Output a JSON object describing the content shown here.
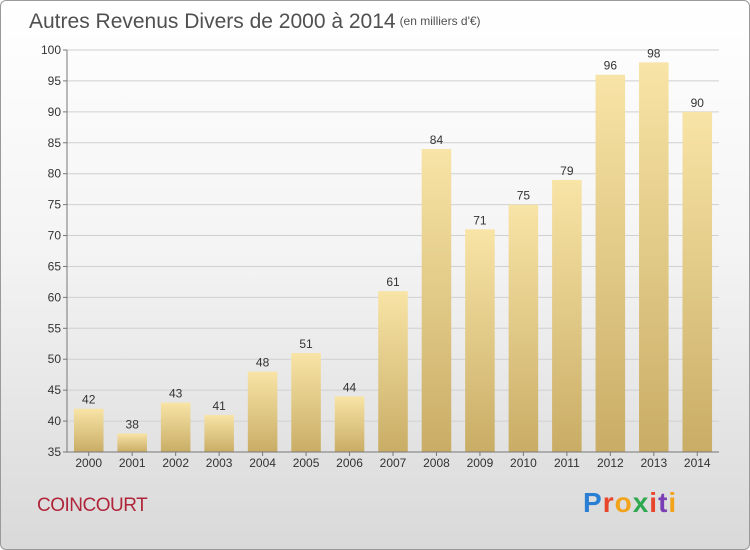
{
  "title": "Autres Revenus Divers de 2000 à 2014",
  "unit": "(en milliers d'€)",
  "commune": "COINCOURT",
  "logo": {
    "text": "Proxiti",
    "colors": [
      "#2a7fd4",
      "#e8452c",
      "#f2a31b",
      "#2fa84f",
      "#e8452c",
      "#7a3fb5",
      "#f2a31b"
    ]
  },
  "colors": {
    "bar_light": "#f8e4a6",
    "bar_dark": "#c9ad66",
    "grid": "#d0d0d0",
    "axis": "#777777"
  },
  "chart_data": {
    "type": "bar",
    "categories": [
      "2000",
      "2001",
      "2002",
      "2003",
      "2004",
      "2005",
      "2006",
      "2007",
      "2008",
      "2009",
      "2010",
      "2011",
      "2012",
      "2013",
      "2014"
    ],
    "values": [
      42,
      38,
      43,
      41,
      48,
      51,
      44,
      61,
      84,
      71,
      75,
      79,
      96,
      98,
      90
    ],
    "title": "Autres Revenus Divers de 2000 à 2014",
    "subtitle": "(en milliers d'€)",
    "xlabel": "",
    "ylabel": "",
    "ylim": [
      35,
      100
    ],
    "yticks": [
      35,
      40,
      45,
      50,
      55,
      60,
      65,
      70,
      75,
      80,
      85,
      90,
      95,
      100
    ],
    "grid": true,
    "legend": "none"
  }
}
